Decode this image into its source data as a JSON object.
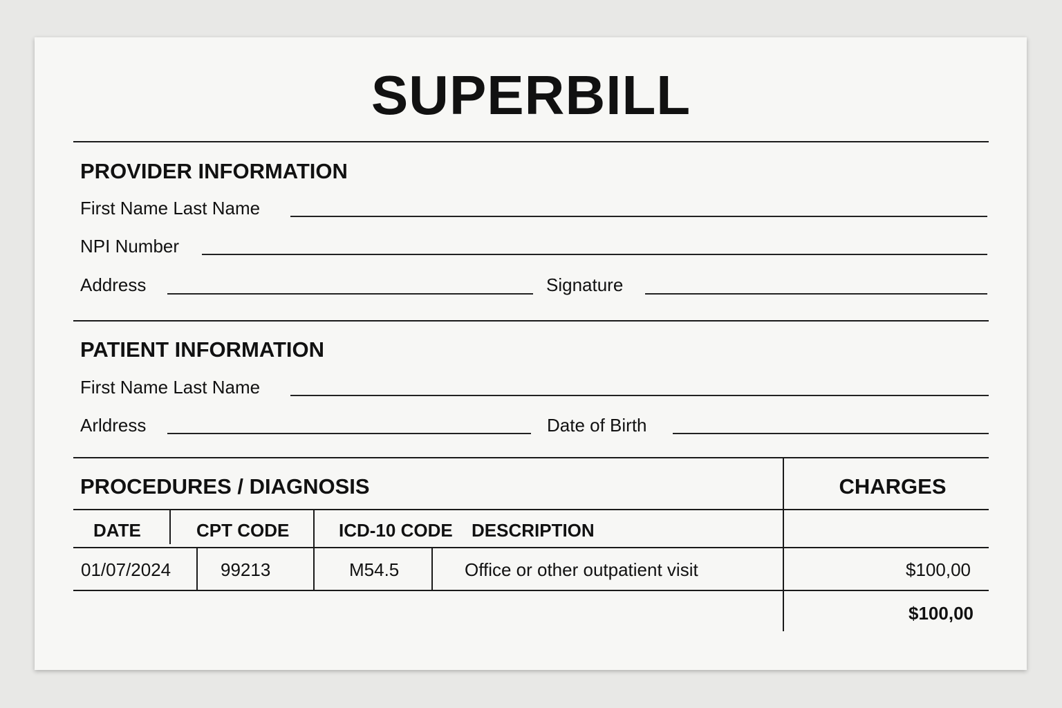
{
  "title": "SUPERBILL",
  "provider": {
    "heading": "PROVIDER INFORMATION",
    "name_label": "First Name Last Name",
    "npi_label": "NPI Number",
    "address_label": "Address",
    "signature_label": "Signature"
  },
  "patient": {
    "heading": "PATIENT INFORMATION",
    "name_label": "First Name Last Name",
    "address_label": "Arldress",
    "dob_label": "Date of Birth"
  },
  "procedures": {
    "heading": "PROCEDURES / DIAGNOSIS",
    "charges_heading": "CHARGES",
    "columns": [
      "DATE",
      "CPT CODE",
      "ICD-10 CODE",
      "DESCRIPTION"
    ],
    "rows": [
      {
        "date": "01/07/2024",
        "cpt": "99213",
        "icd10": "M54.5",
        "description": "Office or other outpatient visit",
        "charge": "$100,00"
      }
    ],
    "total": "$100,00"
  }
}
